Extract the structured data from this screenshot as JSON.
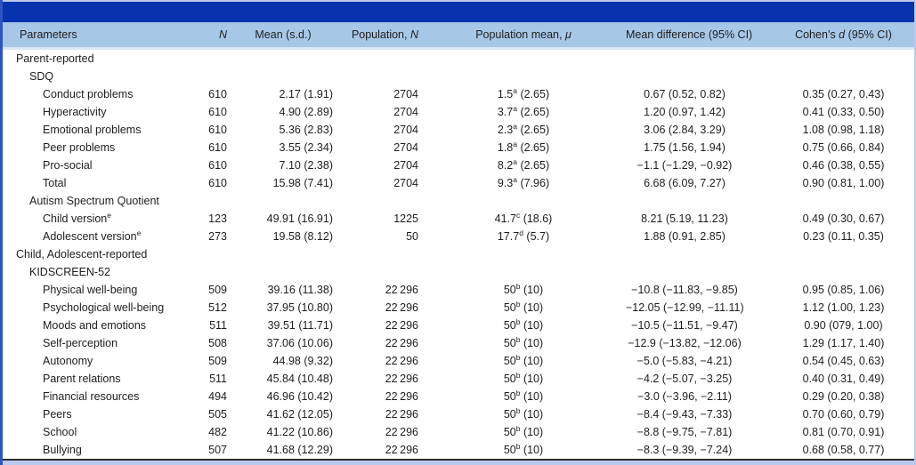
{
  "colors": {
    "bar": "#0833af",
    "head": "#a7c7e7",
    "frame": "#bac9ed",
    "left": "#2d53c6"
  },
  "table": {
    "columns": [
      {
        "key": "param",
        "label": "Parameters"
      },
      {
        "key": "n",
        "label": "~N~"
      },
      {
        "key": "mean",
        "label": "Mean (s.d.)"
      },
      {
        "key": "popn",
        "label": "Population, ~N~"
      },
      {
        "key": "popmean",
        "label": "Population mean, ~μ~"
      },
      {
        "key": "meandiff",
        "label": "Mean difference (95% CI)"
      },
      {
        "key": "cohend",
        "label": "Cohen’s ~d~ (95% CI)"
      }
    ],
    "rows": [
      {
        "indent": 0,
        "label": "Parent-reported"
      },
      {
        "indent": 1,
        "label": "SDQ"
      },
      {
        "indent": 2,
        "label": "Conduct problems",
        "n": "610",
        "mean": "2.17 (1.91)",
        "popn": "2704",
        "popmean": "1.5^a^ (2.65)",
        "meandiff": "0.67 (0.52, 0.82)",
        "cohend": "0.35 (0.27, 0.43)"
      },
      {
        "indent": 2,
        "label": "Hyperactivity",
        "n": "610",
        "mean": "4.90 (2.89)",
        "popn": "2704",
        "popmean": "3.7^a^ (2.65)",
        "meandiff": "1.20 (0.97, 1.42)",
        "cohend": "0.41 (0.33, 0.50)"
      },
      {
        "indent": 2,
        "label": "Emotional problems",
        "n": "610",
        "mean": "5.36 (2.83)",
        "popn": "2704",
        "popmean": "2.3^a^ (2.65)",
        "meandiff": "3.06 (2.84, 3.29)",
        "cohend": "1.08 (0.98, 1.18)"
      },
      {
        "indent": 2,
        "label": "Peer problems",
        "n": "610",
        "mean": "3.55 (2.34)",
        "popn": "2704",
        "popmean": "1.8^a^ (2.65)",
        "meandiff": "1.75 (1.56, 1.94)",
        "cohend": "0.75 (0.66, 0.84)"
      },
      {
        "indent": 2,
        "label": "Pro-social",
        "n": "610",
        "mean": "7.10 (2.38)",
        "popn": "2704",
        "popmean": "8.2^a^ (2.65)",
        "meandiff": "−1.1 (−1.29, −0.92)",
        "cohend": "0.46 (0.38, 0.55)"
      },
      {
        "indent": 2,
        "label": "Total",
        "n": "610",
        "mean": "15.98 (7.41)",
        "popn": "2704",
        "popmean": "9.3^a^ (7.96)",
        "meandiff": "6.68 (6.09, 7.27)",
        "cohend": "0.90 (0.81, 1.00)"
      },
      {
        "indent": 1,
        "label": "Autism Spectrum Quotient"
      },
      {
        "indent": 2,
        "label": "Child version^e^",
        "n": "123",
        "mean": "49.91 (16.91)",
        "popn": "1225",
        "popmean": "41.7^c^ (18.6)",
        "meandiff": "8.21 (5.19, 11.23)",
        "cohend": "0.49 (0.30, 0.67)"
      },
      {
        "indent": 2,
        "label": "Adolescent version^e^",
        "n": "273",
        "mean": "19.58 (8.12)",
        "popn": "50",
        "popmean": "17.7^d^ (5.7)",
        "meandiff": "1.88 (0.91, 2.85)",
        "cohend": "0.23 (0.11, 0.35)"
      },
      {
        "indent": 0,
        "label": "Child, Adolescent-reported"
      },
      {
        "indent": 1,
        "label": "KIDSCREEN-52"
      },
      {
        "indent": 2,
        "label": "Physical well-being",
        "n": "509",
        "mean": "39.16 (11.38)",
        "popn": "22 296",
        "popmean": "50^b^ (10)",
        "meandiff": "−10.8 (−11.83, −9.85)",
        "cohend": "0.95 (0.85, 1.06)"
      },
      {
        "indent": 2,
        "label": "Psychological well-being",
        "n": "512",
        "mean": "37.95 (10.80)",
        "popn": "22 296",
        "popmean": "50^b^ (10)",
        "meandiff": "−12.05 (−12.99, −11.11)",
        "cohend": "1.12 (1.00, 1.23)"
      },
      {
        "indent": 2,
        "label": "Moods and emotions",
        "n": "511",
        "mean": "39.51 (11.71)",
        "popn": "22 296",
        "popmean": "50^b^ (10)",
        "meandiff": "−10.5 (−11.51, −9.47)",
        "cohend": "0.90 (079, 1.00)"
      },
      {
        "indent": 2,
        "label": "Self-perception",
        "n": "508",
        "mean": "37.06 (10.06)",
        "popn": "22 296",
        "popmean": "50^b^ (10)",
        "meandiff": "−12.9 (−13.82, −12.06)",
        "cohend": "1.29 (1.17, 1.40)"
      },
      {
        "indent": 2,
        "label": "Autonomy",
        "n": "509",
        "mean": "44.98 (9.32)",
        "popn": "22 296",
        "popmean": "50^b^ (10)",
        "meandiff": "−5.0 (−5.83, −4.21)",
        "cohend": "0.54 (0.45, 0.63)"
      },
      {
        "indent": 2,
        "label": "Parent relations",
        "n": "511",
        "mean": "45.84 (10.48)",
        "popn": "22 296",
        "popmean": "50^b^ (10)",
        "meandiff": "−4.2 (−5.07, −3.25)",
        "cohend": "0.40 (0.31, 0.49)"
      },
      {
        "indent": 2,
        "label": "Financial resources",
        "n": "494",
        "mean": "46.96 (10.42)",
        "popn": "22 296",
        "popmean": "50^b^ (10)",
        "meandiff": "−3.0 (−3.96, −2.11)",
        "cohend": "0.29 (0.20, 0.38)"
      },
      {
        "indent": 2,
        "label": "Peers",
        "n": "505",
        "mean": "41.62 (12.05)",
        "popn": "22 296",
        "popmean": "50^b^ (10)",
        "meandiff": "−8.4 (−9.43, −7.33)",
        "cohend": "0.70 (0.60, 0.79)"
      },
      {
        "indent": 2,
        "label": "School",
        "n": "482",
        "mean": "41.22 (10.86)",
        "popn": "22 296",
        "popmean": "50^b^ (10)",
        "meandiff": "−8.8 (−9.75, −7.81)",
        "cohend": "0.81 (0.70, 0.91)"
      },
      {
        "indent": 2,
        "label": "Bullying",
        "n": "507",
        "mean": "41.68 (12.29)",
        "popn": "22 296",
        "popmean": "50^b^ (10)",
        "meandiff": "−8.3 (−9.39, −7.24)",
        "cohend": "0.68 (0.58, 0.77)"
      }
    ]
  }
}
